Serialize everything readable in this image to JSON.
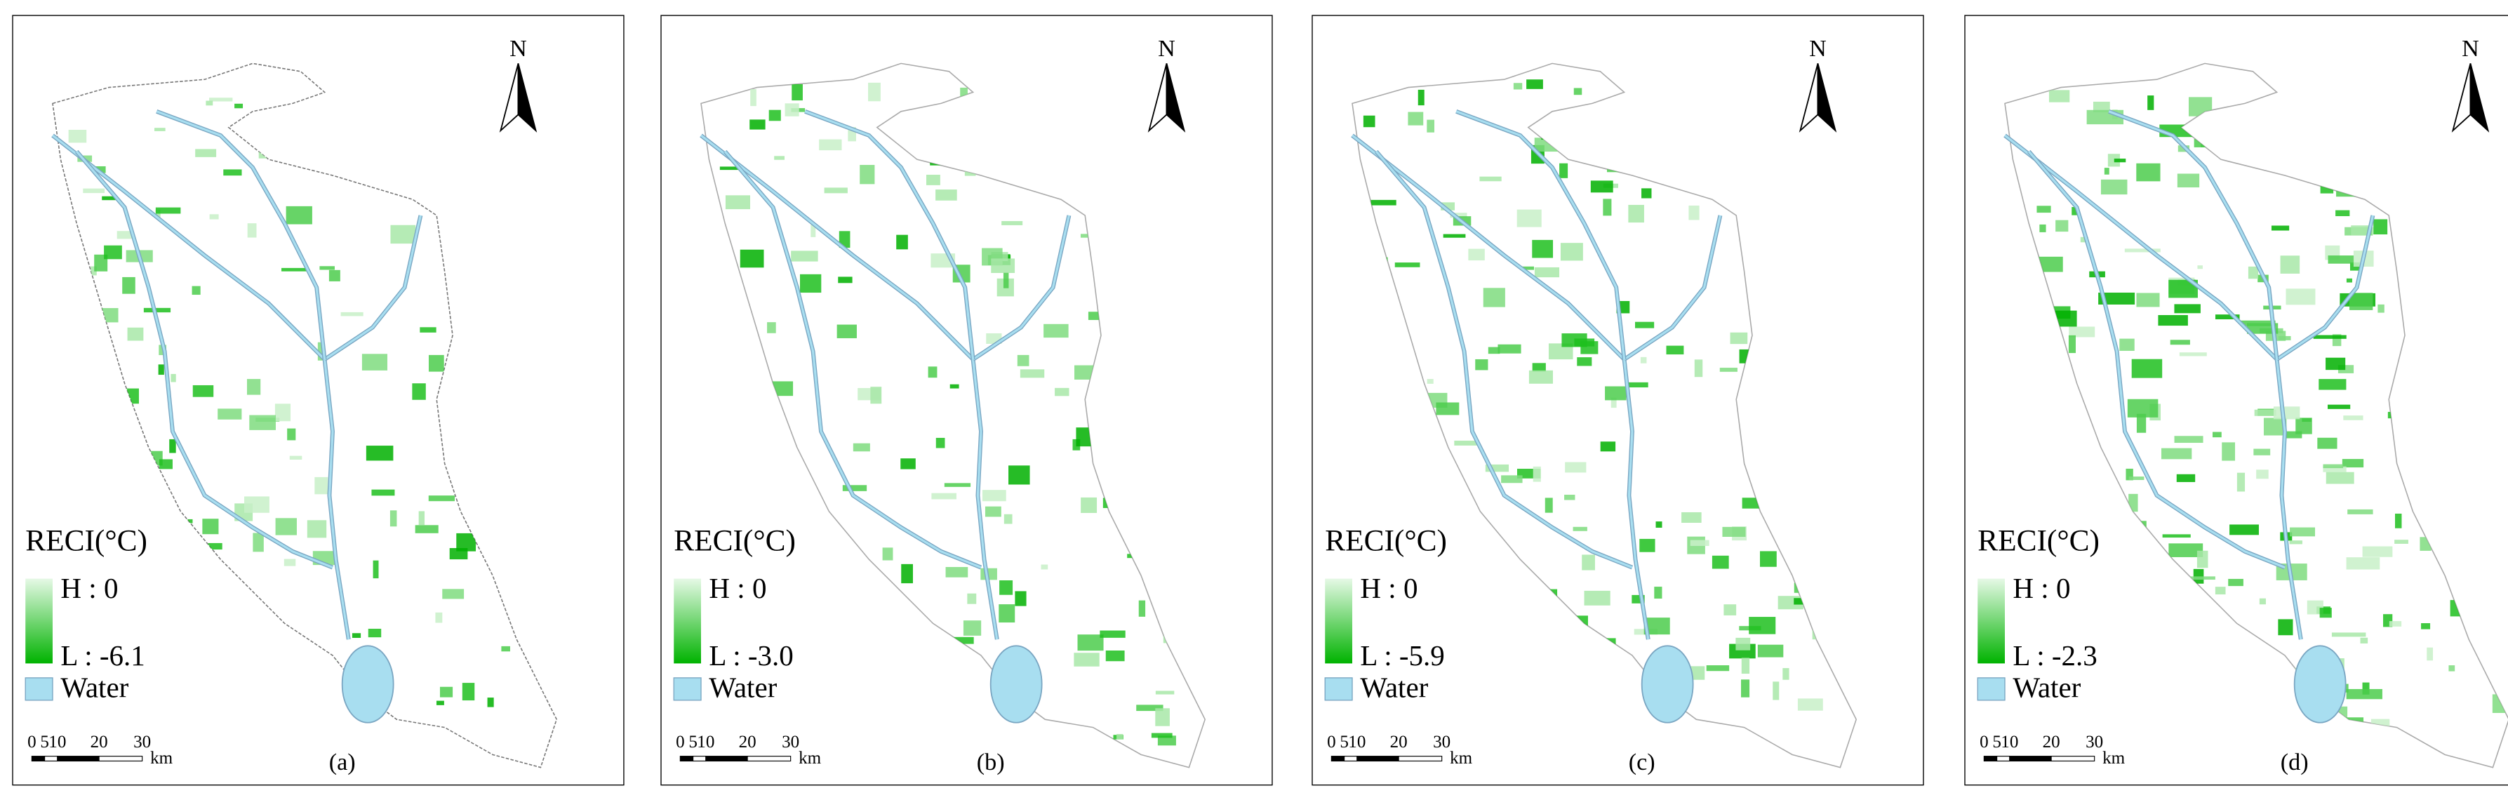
{
  "panels": [
    {
      "label": "(a)",
      "legend_title": "RECI(°C)",
      "high_label": "H : 0",
      "low_label": "L : -6.1",
      "water_label": "Water",
      "scale_labels": [
        0,
        5,
        10,
        20,
        30
      ],
      "scale_unit": "km",
      "north": "N"
    },
    {
      "label": "(b)",
      "legend_title": "RECI(°C)",
      "high_label": "H : 0",
      "low_label": "L : -3.0",
      "water_label": "Water",
      "scale_labels": [
        0,
        5,
        10,
        20,
        30
      ],
      "scale_unit": "km",
      "north": "N"
    },
    {
      "label": "(c)",
      "legend_title": "RECI(°C)",
      "high_label": "H : 0",
      "low_label": "L : -5.9",
      "water_label": "Water",
      "scale_labels": [
        0,
        5,
        10,
        20,
        30
      ],
      "scale_unit": "km",
      "north": "N"
    },
    {
      "label": "(d)",
      "legend_title": "RECI(°C)",
      "high_label": "H : 0",
      "low_label": "L : -2.3",
      "water_label": "Water",
      "scale_labels": [
        0,
        5,
        10,
        20,
        30
      ],
      "scale_unit": "km",
      "north": "N"
    }
  ]
}
